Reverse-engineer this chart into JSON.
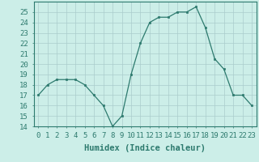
{
  "x": [
    0,
    1,
    2,
    3,
    4,
    5,
    6,
    7,
    8,
    9,
    10,
    11,
    12,
    13,
    14,
    15,
    16,
    17,
    18,
    19,
    20,
    21,
    22,
    23
  ],
  "y": [
    17,
    18,
    18.5,
    18.5,
    18.5,
    18,
    17,
    16,
    14,
    15,
    19,
    22,
    24,
    24.5,
    24.5,
    25,
    25,
    25.5,
    23.5,
    20.5,
    19.5,
    17,
    17,
    16
  ],
  "line_color": "#2d7a6e",
  "marker": "s",
  "marker_size": 2.0,
  "bg_color": "#cceee8",
  "grid_color": "#aacccc",
  "xlabel": "Humidex (Indice chaleur)",
  "xlim": [
    -0.5,
    23.5
  ],
  "ylim": [
    14,
    26
  ],
  "yticks": [
    14,
    15,
    16,
    17,
    18,
    19,
    20,
    21,
    22,
    23,
    24,
    25
  ],
  "xtick_labels": [
    "0",
    "1",
    "2",
    "3",
    "4",
    "5",
    "6",
    "7",
    "8",
    "9",
    "10",
    "11",
    "12",
    "13",
    "14",
    "15",
    "16",
    "17",
    "18",
    "19",
    "20",
    "21",
    "22",
    "23"
  ],
  "xlabel_fontsize": 7.5,
  "tick_fontsize": 6.5,
  "spine_color": "#2d7a6e",
  "tick_color": "#2d7a6e",
  "label_color": "#2d7a6e"
}
